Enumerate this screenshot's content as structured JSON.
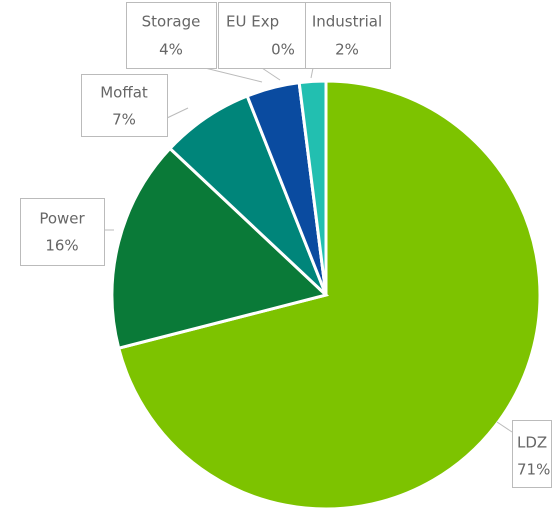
{
  "chart_data": {
    "type": "pie",
    "categories": [
      "LDZ",
      "Power",
      "Moffat",
      "Storage",
      "EU Exp",
      "Industrial"
    ],
    "values": [
      71,
      16,
      7,
      4,
      0,
      2
    ],
    "value_labels": [
      "71%",
      "16%",
      "7%",
      "4%",
      "0%",
      "2%"
    ],
    "colors": [
      "#7dc300",
      "#0a7a38",
      "#00857a",
      "#0a4ba0",
      "#0a3f8f",
      "#22bfb0"
    ]
  }
}
